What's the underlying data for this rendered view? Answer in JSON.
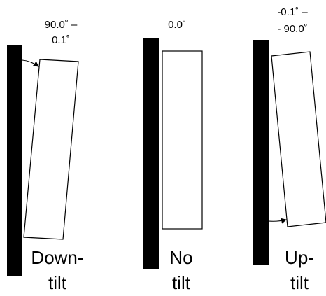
{
  "panels": [
    {
      "id": "downtilt",
      "angle_label_line1": "90.0˚ –",
      "angle_label_line2": "0.1˚",
      "caption_line1": "Down-",
      "caption_line2": "tilt"
    },
    {
      "id": "no-tilt",
      "angle_label_line1": "0.0˚",
      "caption_line1": "No",
      "caption_line2": "tilt"
    },
    {
      "id": "uptilt",
      "angle_label_line1": "-0.1˚ –",
      "angle_label_line2": "- 90.0˚",
      "caption_line1": "Up-",
      "caption_line2": "tilt"
    }
  ],
  "colors": {
    "wall": "#000000",
    "panel_outline": "#000000",
    "background": "#ffffff"
  }
}
